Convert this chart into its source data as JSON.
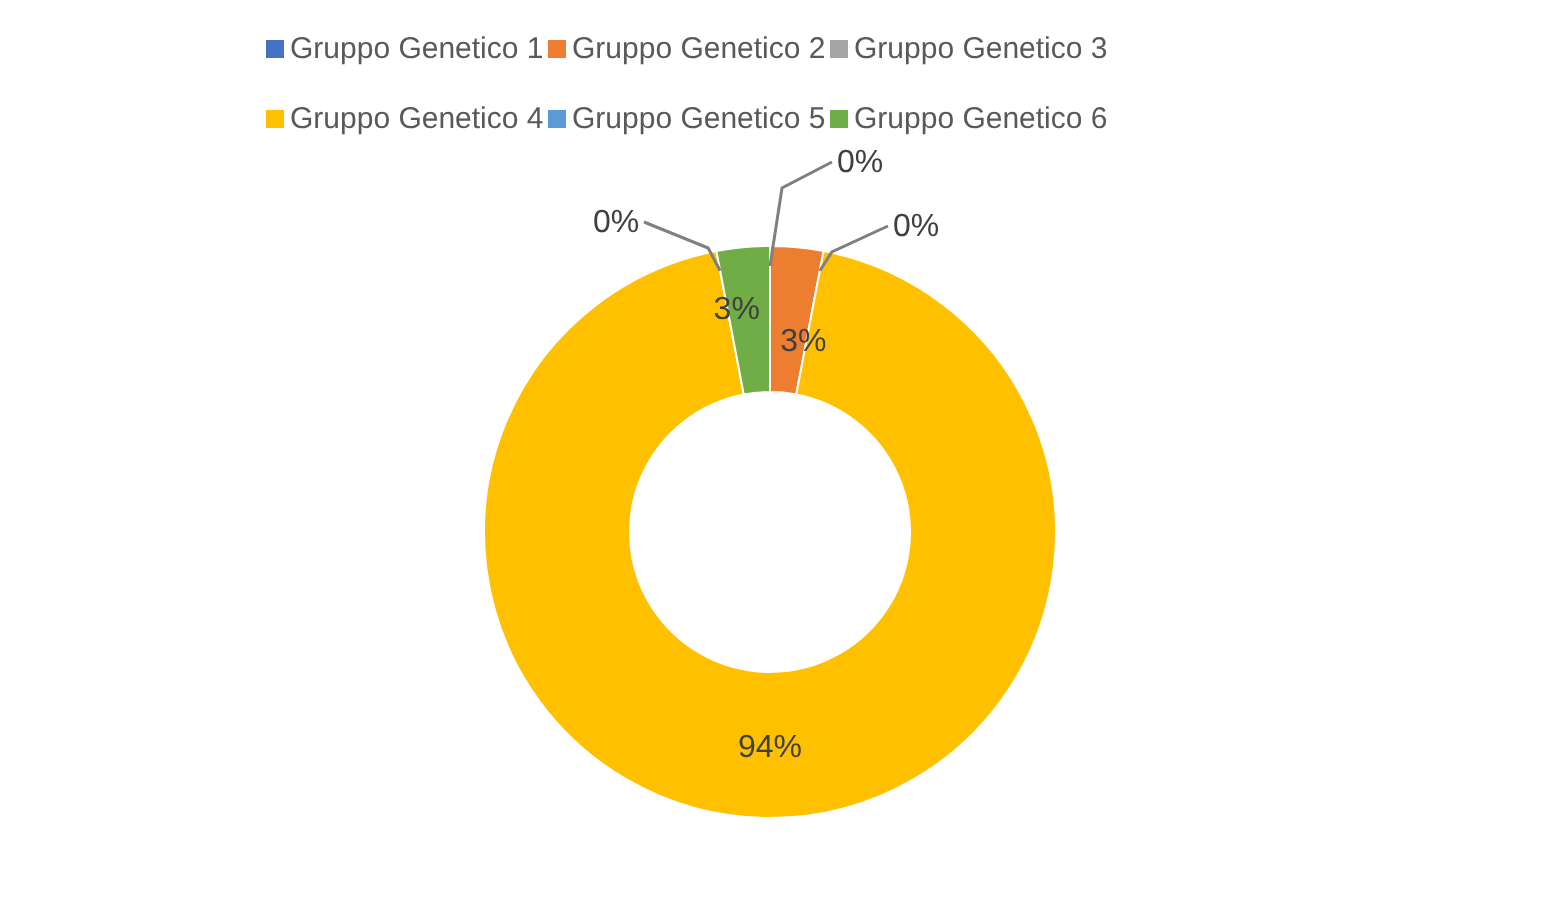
{
  "chart_data": {
    "type": "donut",
    "categories": [
      "Gruppo Genetico 1",
      "Gruppo Genetico 2",
      "Gruppo Genetico 3",
      "Gruppo Genetico 4",
      "Gruppo Genetico 5",
      "Gruppo Genetico 6"
    ],
    "values": [
      0,
      3,
      0,
      94,
      0,
      3
    ],
    "colors": [
      "#4472c4",
      "#ed7d31",
      "#a5a5a5",
      "#ffc000",
      "#5b9bd5",
      "#70ad47"
    ],
    "value_labels": [
      "0%",
      "3%",
      "0%",
      "94%",
      "0%",
      "3%"
    ],
    "legend": "top"
  }
}
